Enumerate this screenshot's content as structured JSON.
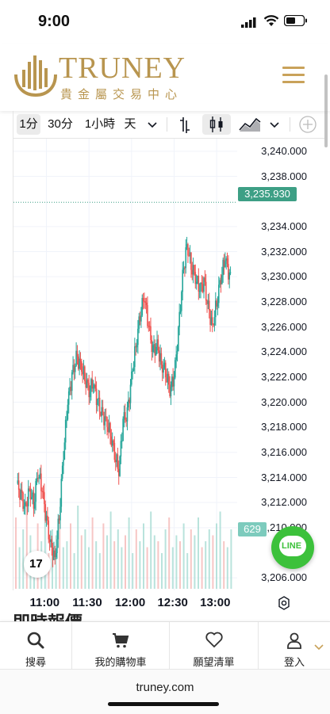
{
  "status_bar": {
    "time": "9:00"
  },
  "brand": {
    "name": "TRUNEY",
    "subtitle": "貴金屬交易中心"
  },
  "toolbar": {
    "intervals": [
      "1分",
      "30分",
      "1小時",
      "天"
    ],
    "selected_interval": "1分"
  },
  "chart": {
    "current_price": "3,235.930",
    "volume_badge": "629",
    "tv_mark": "17",
    "line_button": "LINE"
  },
  "section": {
    "title": "即時報價"
  },
  "bottom_nav": {
    "items": [
      {
        "label": "搜尋",
        "icon": "search-icon"
      },
      {
        "label": "我的購物車",
        "icon": "cart-icon"
      },
      {
        "label": "願望清單",
        "icon": "heart-icon"
      },
      {
        "label": "登入",
        "icon": "user-icon"
      }
    ]
  },
  "browser": {
    "url": "truney.com"
  },
  "colors": {
    "up": "#26a69a",
    "down": "#ef5350",
    "gold": "#b8954f",
    "line_green": "#3cc13b"
  },
  "chart_data": {
    "type": "candlestick",
    "title": "",
    "xlabel": "",
    "ylabel": "",
    "ylim": [
      3205.0,
      3241.0
    ],
    "y_ticks": [
      "3,240.000",
      "3,238.000",
      "3,234.000",
      "3,232.000",
      "3,230.000",
      "3,228.000",
      "3,226.000",
      "3,224.000",
      "3,222.000",
      "3,220.000",
      "3,218.000",
      "3,216.000",
      "3,214.000",
      "3,212.000",
      "3,210.000",
      "3,206.000"
    ],
    "y_tick_values": [
      3240,
      3238,
      3234,
      3232,
      3230,
      3228,
      3226,
      3224,
      3222,
      3220,
      3218,
      3216,
      3214,
      3212,
      3210,
      3206
    ],
    "x_ticks": [
      "11:00",
      "11:30",
      "12:00",
      "12:30",
      "13:00"
    ],
    "x_tick_positions_min": [
      30,
      60,
      90,
      120,
      150
    ],
    "x_range_min": [
      9,
      160
    ],
    "last_price": 3235.93,
    "series": [
      {
        "close_path": [
          [
            9,
            3213.5
          ],
          [
            12,
            3212.5
          ],
          [
            15,
            3211.5
          ],
          [
            18,
            3213
          ],
          [
            21,
            3212
          ],
          [
            24,
            3214.5
          ],
          [
            27,
            3213
          ],
          [
            30,
            3210.5
          ],
          [
            33,
            3208.5
          ],
          [
            36,
            3207.5
          ],
          [
            39,
            3211
          ],
          [
            42,
            3216
          ],
          [
            45,
            3220
          ],
          [
            48,
            3222
          ],
          [
            51,
            3223.5
          ],
          [
            54,
            3223
          ],
          [
            57,
            3222
          ],
          [
            60,
            3221
          ],
          [
            63,
            3221.5
          ],
          [
            66,
            3220
          ],
          [
            69,
            3219
          ],
          [
            72,
            3218.5
          ],
          [
            75,
            3217.5
          ],
          [
            78,
            3216
          ],
          [
            81,
            3214.5
          ],
          [
            84,
            3218.5
          ],
          [
            87,
            3219
          ],
          [
            90,
            3222
          ],
          [
            93,
            3224.5
          ],
          [
            96,
            3227
          ],
          [
            99,
            3228.5
          ],
          [
            102,
            3226
          ],
          [
            105,
            3224
          ],
          [
            108,
            3224.5
          ],
          [
            111,
            3223
          ],
          [
            114,
            3222.5
          ],
          [
            117,
            3221
          ],
          [
            120,
            3222
          ],
          [
            123,
            3225.5
          ],
          [
            126,
            3230
          ],
          [
            129,
            3232.5
          ],
          [
            132,
            3231
          ],
          [
            135,
            3230
          ],
          [
            138,
            3229
          ],
          [
            141,
            3229.5
          ],
          [
            144,
            3227.5
          ],
          [
            147,
            3226
          ],
          [
            150,
            3228
          ],
          [
            153,
            3230
          ],
          [
            156,
            3231.5
          ],
          [
            159,
            3230
          ],
          [
            162,
            3229
          ],
          [
            165,
            3228
          ],
          [
            168,
            3230.5
          ],
          [
            171,
            3232.5
          ],
          [
            174,
            3233.5
          ],
          [
            177,
            3235.93
          ]
        ],
        "volumes": [
          0.6,
          0.35,
          0.5,
          0.7,
          0.45,
          0.3,
          0.55,
          0.4,
          0.65,
          0.3,
          0.5,
          0.45,
          0.6,
          0.35,
          0.4,
          0.55,
          0.3,
          0.7,
          0.45,
          0.5,
          0.35,
          0.6,
          0.4,
          0.3,
          0.55,
          0.45,
          0.65,
          0.4,
          0.5,
          0.35,
          0.45,
          0.6,
          0.3,
          0.5,
          0.4,
          0.55,
          0.35,
          0.65,
          0.45,
          0.4,
          0.3,
          0.5,
          0.6,
          0.35,
          0.45,
          0.4,
          0.55,
          0.3,
          0.5,
          0.45,
          0.6,
          0.35,
          0.4,
          0.5,
          0.45,
          0.55,
          0.65,
          0.4,
          0.35,
          0.5
        ]
      }
    ]
  }
}
